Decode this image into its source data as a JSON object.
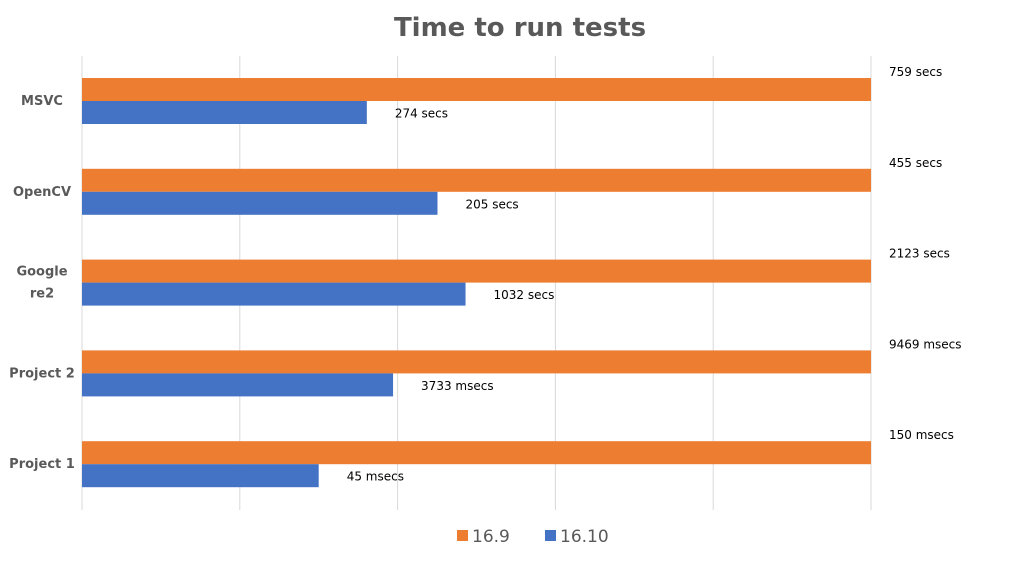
{
  "chart_data": {
    "type": "bar",
    "orientation": "horizontal",
    "title": "Time to run tests",
    "xlabel": "",
    "ylabel": "",
    "grid": true,
    "legend_position": "bottom",
    "categories": [
      "MSVC",
      "OpenCV",
      "Google re2",
      "Project 2",
      "Project 1"
    ],
    "series": [
      {
        "name": "16.9",
        "color": "#ED7D31",
        "values": [
          759,
          455,
          2123,
          9469,
          150
        ],
        "labels": [
          "759 secs",
          "455 secs",
          "2123 secs",
          "9469 msecs",
          "150 msecs"
        ]
      },
      {
        "name": "16.10",
        "color": "#4472C4",
        "values": [
          274,
          205,
          1032,
          3733,
          45
        ],
        "labels": [
          "274 secs",
          "205 secs",
          "1032 secs",
          "3733 msecs",
          "45 msecs"
        ]
      }
    ],
    "normalized_relative_to": "16.9"
  }
}
